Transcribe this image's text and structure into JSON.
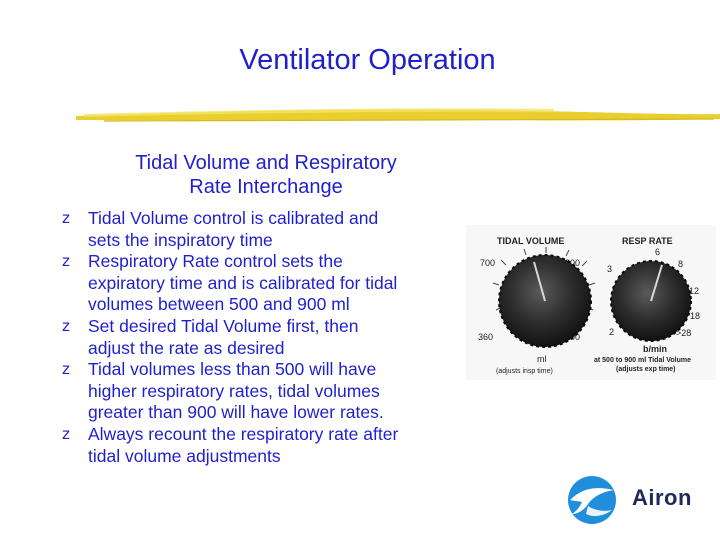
{
  "slide": {
    "title": "Ventilator Operation",
    "subtitle_line1": "Tidal Volume and Respiratory",
    "subtitle_line2": "Rate Interchange",
    "bullet_glyph": "z",
    "bullets": [
      {
        "lines": [
          "Tidal Volume control is calibrated and",
          "sets the inspiratory time"
        ]
      },
      {
        "lines": [
          "Respiratory Rate control sets the",
          "expiratory time and is calibrated for tidal",
          "volumes between 500 and 900 ml"
        ]
      },
      {
        "lines": [
          "Set desired Tidal Volume first, then",
          "adjust the rate as desired"
        ]
      },
      {
        "lines": [
          "Tidal volumes less than 500 will have",
          "higher respiratory rates, tidal volumes",
          "greater than 900 will have lower rates."
        ]
      },
      {
        "lines": [
          "Always recount the respiratory rate after",
          "tidal volume adjustments"
        ]
      }
    ]
  },
  "panel": {
    "tidal_volume": {
      "heading": "TIDAL VOLUME",
      "tick_700": "700",
      "tick_1200": "1200",
      "tick_360": "360",
      "tick_1500": "1500",
      "unit": "ml",
      "note": "(adjusts insp time)"
    },
    "resp_rate": {
      "heading": "RESP RATE",
      "tick_6": "6",
      "tick_3": "3",
      "tick_8": "8",
      "tick_12": "12",
      "tick_18": "18",
      "tick_2": "2",
      "tick_gt28": ">28",
      "unit": "b/min",
      "note_line1": "at 500 to 900 ml Tidal Volume",
      "note_line2": "(adjusts exp time)"
    }
  },
  "logo": {
    "text": "Airon"
  },
  "colors": {
    "text": "#1f1fcc",
    "rule": "#e8cf2e",
    "logo_blue": "#1f8fdc",
    "logo_text": "#1e2a5a"
  },
  "icons": {
    "bullet": "z-bullet-icon",
    "logo": "airon-bird-icon",
    "knobs": "ventilator-knob-icon"
  }
}
